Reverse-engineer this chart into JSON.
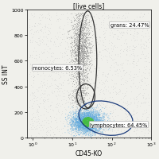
{
  "title": "[live cells]",
  "xlabel": "CD45-KO",
  "ylabel": "SS INT",
  "background_color": "#f0f0eb",
  "grans_label": "grans: 24.47%",
  "monocytes_label": "monocytes: 6.53%",
  "lymphocytes_label": "lymphocytes: 64.45%",
  "dot_color_background": "#b0b0b0",
  "dot_color_grans": "#888888",
  "dot_color_lymph_blue": "#60aadd",
  "dot_color_lymph_green": "#44bb44",
  "seed": 42,
  "title_fontsize": 5.5,
  "label_fontsize": 4.8,
  "tick_fontsize": 4.5,
  "axis_label_fontsize": 5.5
}
